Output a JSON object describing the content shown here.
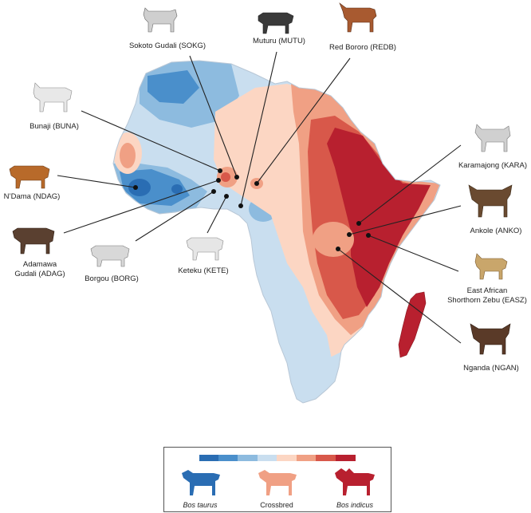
{
  "breeds": [
    {
      "id": "SOKG",
      "label": "Sokoto Gudali (SOKG)",
      "coat": "#cfcfcf"
    },
    {
      "id": "MUTU",
      "label": "Muturu (MUTU)",
      "coat": "#3a3a3a"
    },
    {
      "id": "REDB",
      "label": "Red Bororo (REDB)",
      "coat": "#a85a30"
    },
    {
      "id": "BUNA",
      "label": "Bunaji (BUNA)",
      "coat": "#e8e8e8"
    },
    {
      "id": "NDAG",
      "label": "N’Dama (NDAG)",
      "coat": "#b86a2a"
    },
    {
      "id": "ADAG",
      "label": "Adamawa Gudali (ADAG)",
      "coat": "#5a4030"
    },
    {
      "id": "BORG",
      "label": "Borgou (BORG)",
      "coat": "#d8d8d8"
    },
    {
      "id": "KETE",
      "label": "Keteku (KETE)",
      "coat": "#e6e6e6"
    },
    {
      "id": "KARA",
      "label": "Karamajong (KARA)",
      "coat": "#d0d0d0"
    },
    {
      "id": "ANKO",
      "label": "Ankole (ANKO)",
      "coat": "#6a4a30"
    },
    {
      "id": "EASZ",
      "label": "East African Shorthorn Zebu (EASZ)",
      "coat": "#c9a66b"
    },
    {
      "id": "NGAN",
      "label": "Nganda (NGAN)",
      "coat": "#5a3a28"
    }
  ],
  "label_lines": {
    "ADAG": [
      "Adamawa",
      "Gudali (ADAG)"
    ],
    "EASZ": [
      "East African",
      "Shorthorn Zebu (EASZ)"
    ]
  },
  "legend": {
    "colors": [
      "#2a6db3",
      "#4a8fcb",
      "#8dbbdf",
      "#c9deef",
      "#fcd6c3",
      "#f0a084",
      "#d8584a",
      "#b8202f"
    ],
    "items": [
      {
        "label": "Bos taurus",
        "italic": true,
        "color": "#2a6db3"
      },
      {
        "label": "Crossbred",
        "italic": false,
        "color": "#f0a084"
      },
      {
        "label": "Bos indicus",
        "italic": true,
        "color": "#b8202f"
      }
    ]
  }
}
